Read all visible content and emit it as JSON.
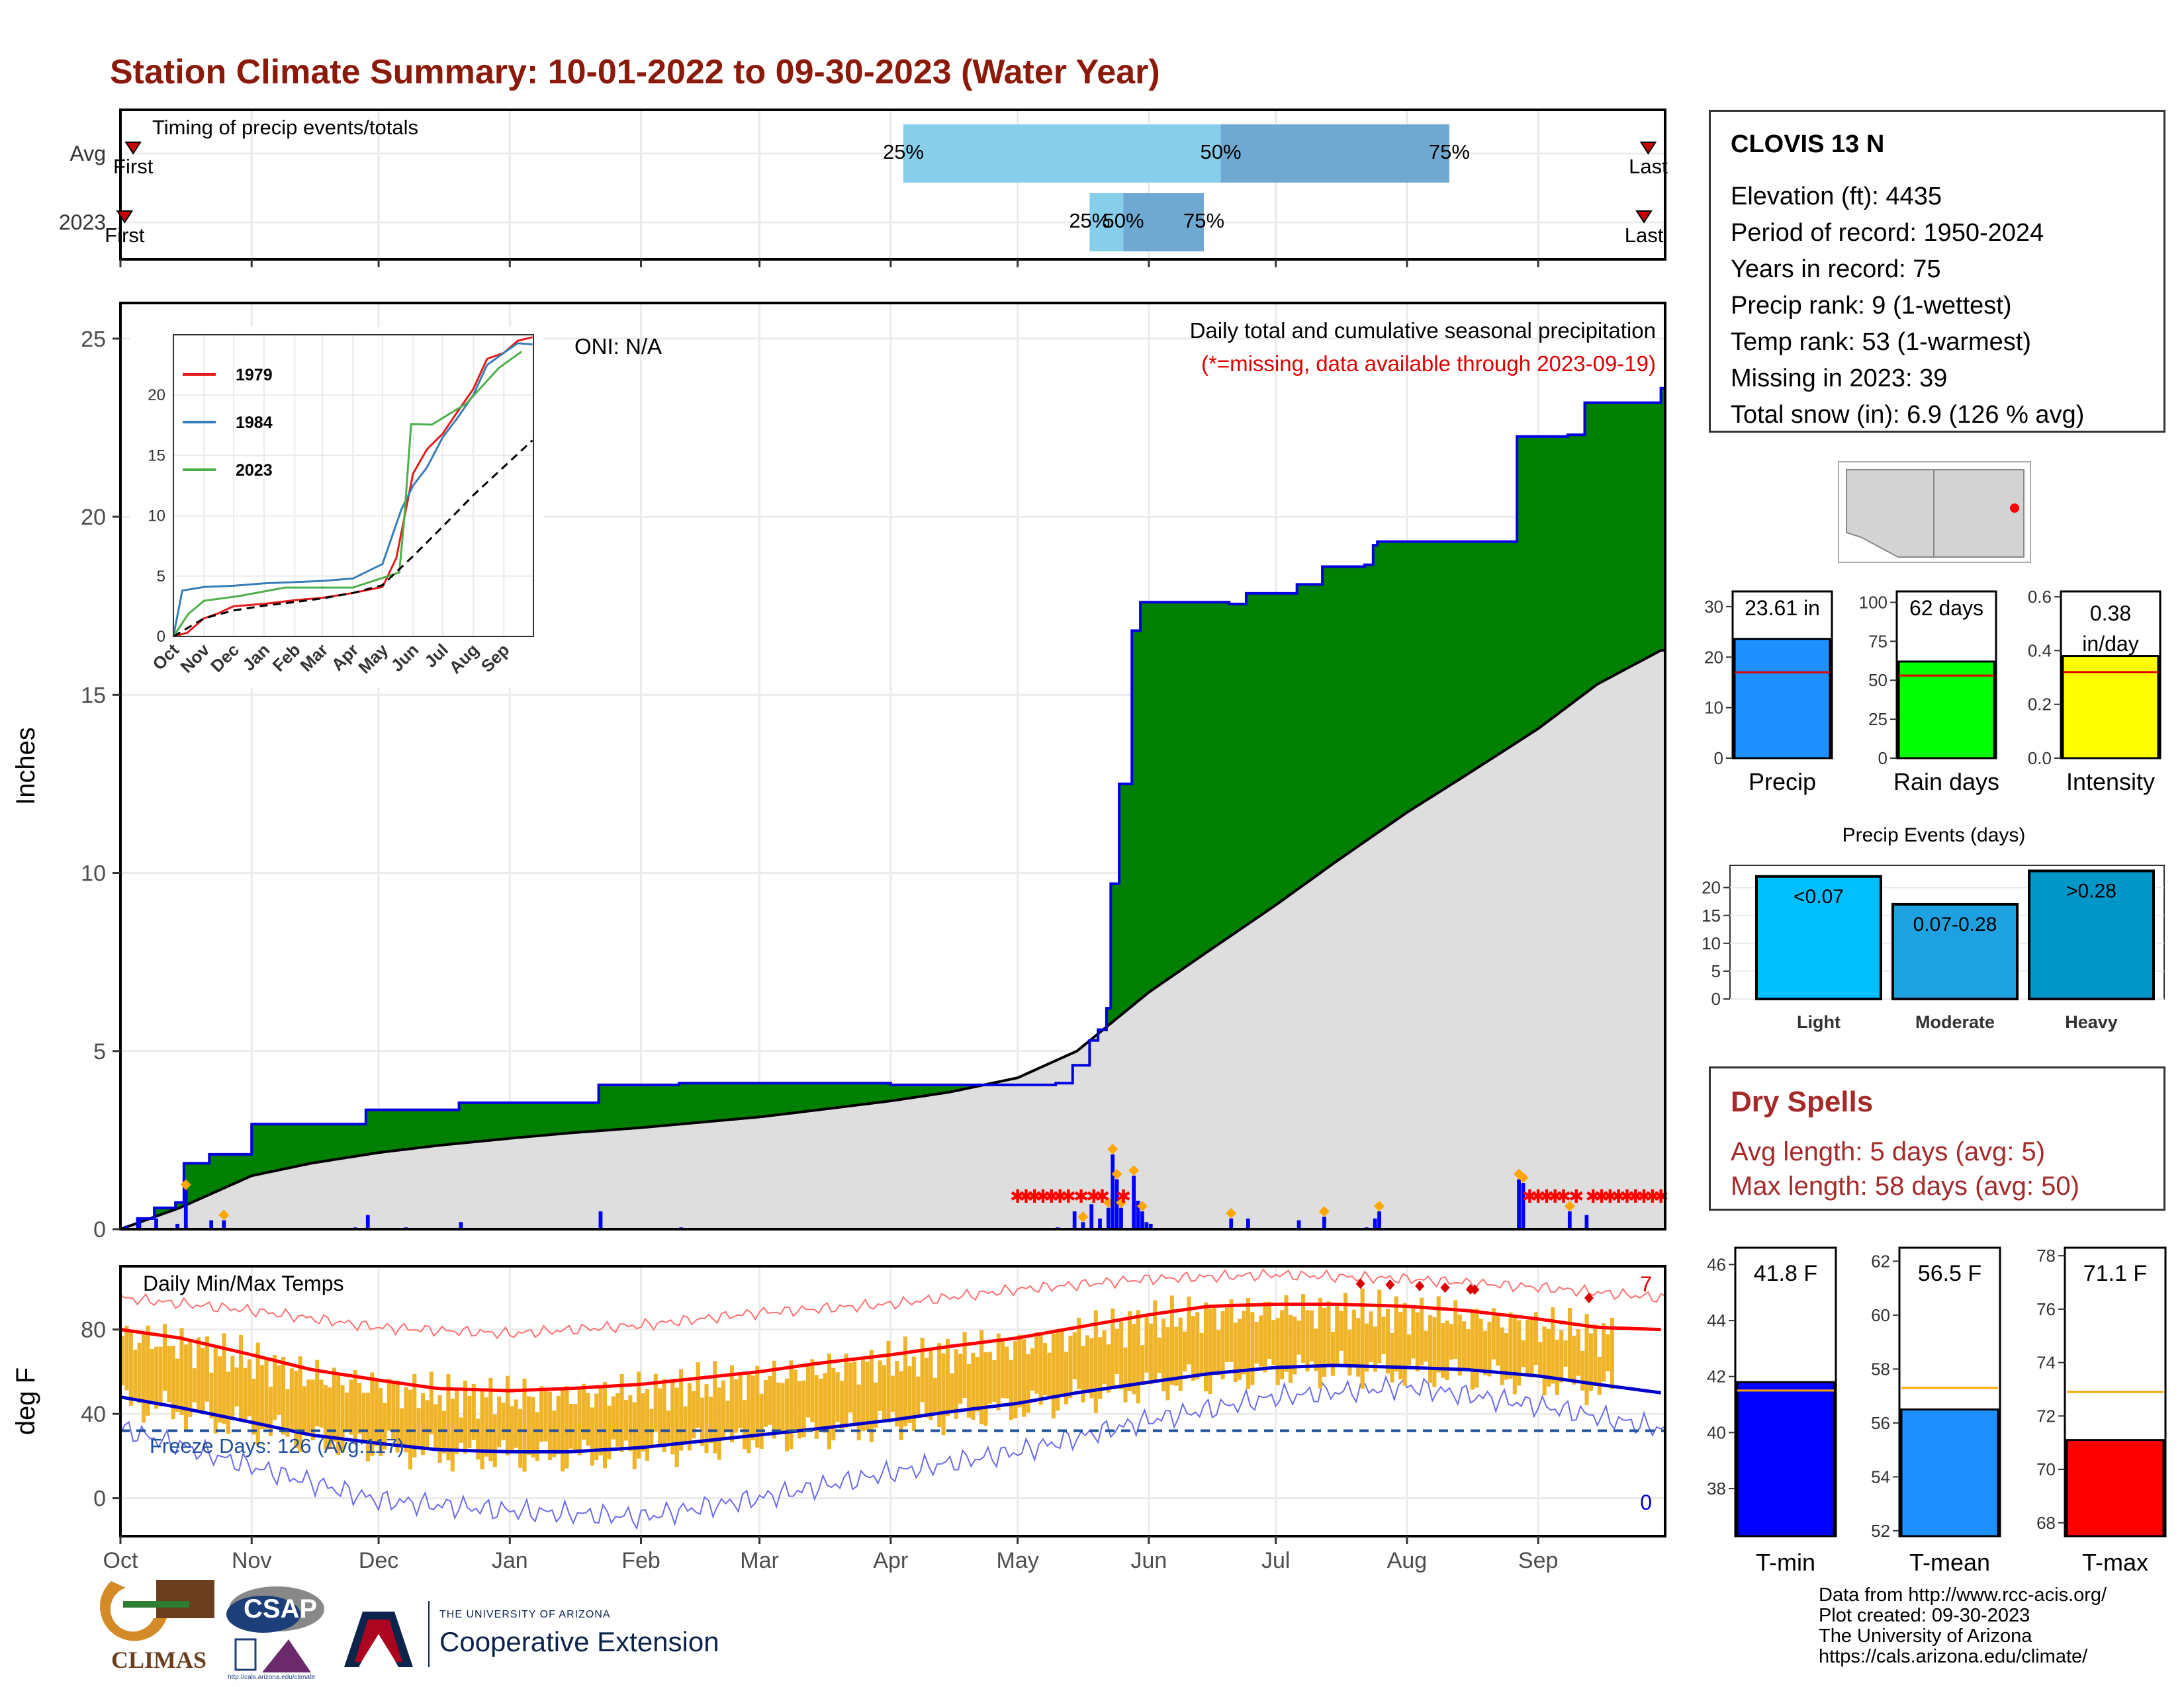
{
  "title": "Station Climate Summary: 10-01-2022 to 09-30-2023 (Water Year)",
  "timing": {
    "caption": "Timing of precip events/totals",
    "rows": [
      "Avg",
      "2023"
    ],
    "first_label": "First",
    "last_label": "Last",
    "pct_labels": [
      "25%",
      "50%",
      "75%"
    ],
    "avg": {
      "first": "2022-10-04",
      "p25": "2023-04-04",
      "p50": "2023-06-18",
      "p75": "2023-08-11",
      "last": "2023-09-27"
    },
    "y2023": {
      "first": "2022-10-02",
      "p25": "2023-05-18",
      "p50": "2023-05-26",
      "p75": "2023-06-14",
      "last": "2023-09-26"
    }
  },
  "main_chart": {
    "ylabel": "Inches",
    "ticks": [
      0,
      5,
      10,
      15,
      20,
      25
    ],
    "annotation_title": "Daily total and cumulative seasonal precipitation",
    "annotation_missing": "(*=missing, data available through 2023-09-19)",
    "oni": "ONI: N/A"
  },
  "temp_chart": {
    "ylabel": "deg F",
    "caption": "Daily Min/Max Temps",
    "ticks": [
      0,
      40,
      80
    ],
    "freeze_label": "Freeze Days: 126 (Avg:117)",
    "count_hot": "7",
    "count_cold": "0"
  },
  "months": [
    "Oct",
    "Nov",
    "Dec",
    "Jan",
    "Feb",
    "Mar",
    "Apr",
    "May",
    "Jun",
    "Jul",
    "Aug",
    "Sep"
  ],
  "station": {
    "name": "CLOVIS 13 N",
    "lines": [
      "Elevation (ft): 4435",
      "Period of record: 1950-2024",
      "Years in record: 75",
      "Precip rank: 9 (1-wettest)",
      "Temp rank: 53 (1-warmest)",
      "Missing in 2023: 39",
      "Total snow (in): 6.9 (126 % avg)"
    ]
  },
  "mini_bars": [
    {
      "label": "Precip",
      "value": 23.61,
      "avg": 17.0,
      "text": "23.61 in",
      "ticks": [
        "0",
        "10",
        "20",
        "30"
      ],
      "min": 0,
      "max": 33,
      "color": "#1e90ff"
    },
    {
      "label": "Rain days",
      "value": 62,
      "avg": 53,
      "text": "62 days",
      "ticks": [
        "0",
        "25",
        "50",
        "75",
        "100"
      ],
      "min": 0,
      "max": 107,
      "color": "#00ff00"
    },
    {
      "label": "Intensity",
      "value": 0.38,
      "avg": 0.32,
      "text": "0.38 in/day",
      "ticks": [
        "0.0",
        "0.2",
        "0.4",
        "0.6"
      ],
      "min": 0,
      "max": 0.62,
      "color": "#ffff00"
    }
  ],
  "precip_events": {
    "title": "Precip Events (days)",
    "ticks": [
      "0",
      "5",
      "10",
      "15",
      "20"
    ],
    "max": 24,
    "bars": [
      {
        "label": "Light",
        "value": 22,
        "text": "<0.07",
        "color": "#00bfff"
      },
      {
        "label": "Moderate",
        "value": 17,
        "text": "0.07-0.28",
        "color": "#1ea1e0"
      },
      {
        "label": "Heavy",
        "value": 23,
        "text": ">0.28",
        "color": "#0096c7"
      }
    ]
  },
  "dry_spells": {
    "title": "Dry Spells",
    "avg_length": "Avg length: 5 days (avg: 5)",
    "max_length": "Max length: 58 days (avg: 50)"
  },
  "temp_bars": [
    {
      "label": "T-min",
      "value": 41.8,
      "avg": 41.5,
      "text": "41.8 F",
      "ticks": [
        "38",
        "40",
        "42",
        "44",
        "46"
      ],
      "min": 36.3,
      "max": 46.6,
      "color": "#0000ff"
    },
    {
      "label": "T-mean",
      "value": 56.5,
      "avg": 57.3,
      "text": "56.5 F",
      "ticks": [
        "52",
        "54",
        "56",
        "58",
        "60",
        "62"
      ],
      "min": 51.8,
      "max": 62.5,
      "color": "#1e90ff"
    },
    {
      "label": "T-max",
      "value": 71.1,
      "avg": 72.9,
      "text": "71.1 F",
      "ticks": [
        "68",
        "70",
        "72",
        "74",
        "76",
        "78"
      ],
      "min": 67.5,
      "max": 78.3,
      "color": "#ff0000"
    }
  ],
  "credits": [
    "Data from http://www.rcc-acis.org/",
    "Plot created: 09-30-2023",
    "The University of Arizona",
    "https://cals.arizona.edu/climate/"
  ],
  "logos": {
    "climas": "CLIMAS",
    "csap": "CSAP",
    "csap_url": "http://cals.arizona.edu/climate",
    "ua_line1": "THE UNIVERSITY OF ARIZONA",
    "ua_line2": "Cooperative Extension"
  },
  "chart_data": [
    {
      "type": "area",
      "title": "Daily total and cumulative seasonal precipitation",
      "ylabel": "Inches",
      "ylim": [
        0,
        26
      ],
      "x_unit": "date",
      "series": [
        {
          "name": "",
          "kind": "cumulative_2023",
          "x": [
            "2022-10-01",
            "2022-10-05",
            "2022-10-09",
            "2022-10-14",
            "2022-10-16",
            "2022-10-22",
            "2022-11-01",
            "2022-11-25",
            "2022-11-28",
            "2022-12-07",
            "2022-12-20",
            "2023-01-22",
            "2023-02-10",
            "2023-04-01",
            "2023-05-10",
            "2023-05-14",
            "2023-05-18",
            "2023-05-20",
            "2023-05-22",
            "2023-05-23",
            "2023-05-25",
            "2023-05-28",
            "2023-05-30",
            "2023-06-20",
            "2023-06-24",
            "2023-07-06",
            "2023-07-12",
            "2023-07-22",
            "2023-07-24",
            "2023-07-25",
            "2023-08-26",
            "2023-08-27",
            "2023-09-08",
            "2023-09-12",
            "2023-09-30"
          ],
          "y": [
            0,
            0.3,
            0.6,
            0.75,
            1.85,
            2.1,
            2.95,
            2.95,
            3.35,
            3.35,
            3.55,
            4.05,
            4.1,
            4.05,
            4.1,
            4.6,
            5.3,
            5.6,
            6.2,
            9.7,
            12.5,
            16.8,
            17.6,
            17.55,
            17.85,
            18.1,
            18.6,
            18.65,
            19.2,
            19.3,
            19.3,
            22.25,
            22.3,
            23.2,
            23.61
          ]
        },
        {
          "name": "",
          "kind": "cumulative_average",
          "x": [
            "2022-10-01",
            "2022-10-15",
            "2022-11-01",
            "2022-11-15",
            "2022-12-01",
            "2022-12-15",
            "2023-01-01",
            "2023-01-15",
            "2023-02-01",
            "2023-02-15",
            "2023-03-01",
            "2023-03-15",
            "2023-04-01",
            "2023-04-15",
            "2023-05-01",
            "2023-05-15",
            "2023-06-01",
            "2023-06-15",
            "2023-07-01",
            "2023-07-15",
            "2023-08-01",
            "2023-08-15",
            "2023-09-01",
            "2023-09-15",
            "2023-09-30"
          ],
          "y": [
            0,
            0.6,
            1.5,
            1.85,
            2.15,
            2.35,
            2.55,
            2.7,
            2.85,
            3.0,
            3.15,
            3.35,
            3.6,
            3.85,
            4.25,
            5.0,
            6.65,
            7.8,
            9.1,
            10.3,
            11.7,
            12.75,
            14.05,
            15.3,
            16.25
          ]
        },
        {
          "name": "",
          "kind": "daily_precip",
          "x": [
            "2022-10-02",
            "2022-10-05",
            "2022-10-09",
            "2022-10-14",
            "2022-10-16",
            "2022-10-22",
            "2022-10-25",
            "2022-11-25",
            "2022-11-28",
            "2022-12-07",
            "2022-12-20",
            "2023-01-22",
            "2023-02-10",
            "2023-05-10",
            "2023-05-14",
            "2023-05-16",
            "2023-05-18",
            "2023-05-20",
            "2023-05-22",
            "2023-05-23",
            "2023-05-24",
            "2023-05-25",
            "2023-05-28",
            "2023-05-29",
            "2023-05-30",
            "2023-05-31",
            "2023-06-01",
            "2023-06-20",
            "2023-06-24",
            "2023-07-06",
            "2023-07-12",
            "2023-07-22",
            "2023-07-24",
            "2023-07-25",
            "2023-08-27",
            "2023-08-28",
            "2023-09-08",
            "2023-09-12"
          ],
          "y": [
            0.1,
            0.3,
            0.3,
            0.15,
            1.1,
            0.25,
            0.25,
            0.05,
            0.4,
            0.05,
            0.2,
            0.5,
            0.05,
            0.05,
            0.5,
            0.2,
            0.7,
            0.3,
            0.6,
            2.1,
            1.4,
            0.6,
            1.5,
            0.8,
            0.5,
            0.2,
            0.15,
            0.3,
            0.3,
            0.25,
            0.35,
            0.05,
            0.3,
            0.5,
            1.4,
            1.3,
            0.5,
            0.4
          ]
        },
        {
          "name": "",
          "kind": "missing_markers",
          "x": [
            "2023-05-01",
            "2023-05-03",
            "2023-05-05",
            "2023-05-07",
            "2023-05-09",
            "2023-05-11",
            "2023-05-13",
            "2023-05-16",
            "2023-05-19",
            "2023-05-21",
            "2023-05-26",
            "2023-08-30",
            "2023-09-01",
            "2023-09-03",
            "2023-09-05",
            "2023-09-07",
            "2023-09-10",
            "2023-09-14",
            "2023-09-16",
            "2023-09-18",
            "2023-09-20",
            "2023-09-22",
            "2023-09-24",
            "2023-09-26",
            "2023-09-28",
            "2023-09-30"
          ],
          "y": [
            1.0,
            1.0,
            1.0,
            1.0,
            1.0,
            1.0,
            1.0,
            1.0,
            1.0,
            1.0,
            1.0,
            1.0,
            1.0,
            1.0,
            1.0,
            1.0,
            1.0,
            1.0,
            1.0,
            1.0,
            1.0,
            1.0,
            1.0,
            1.0,
            1.0,
            1.0
          ]
        }
      ]
    },
    {
      "type": "line",
      "title": "",
      "inset": true,
      "ylim": [
        0,
        25
      ],
      "x_unit": "date",
      "series": [
        {
          "name": "1979",
          "color": "#e41a1c",
          "x": [
            "2022-10-01",
            "2022-10-15",
            "2022-11-01",
            "2022-11-15",
            "2022-12-01",
            "2023-01-01",
            "2023-02-01",
            "2023-03-01",
            "2023-04-01",
            "2023-05-01",
            "2023-05-15",
            "2023-06-01",
            "2023-06-15",
            "2023-07-01",
            "2023-07-15",
            "2023-08-01",
            "2023-08-15",
            "2023-09-01",
            "2023-09-15",
            "2023-09-30"
          ],
          "y": [
            0,
            0.3,
            1.5,
            1.9,
            2.5,
            2.7,
            3.0,
            3.2,
            3.6,
            4.1,
            6.5,
            13.5,
            15.5,
            16.8,
            18.5,
            20.5,
            23.0,
            23.5,
            24.5,
            24.8
          ]
        },
        {
          "name": "1984",
          "color": "#377eb8",
          "x": [
            "2022-10-01",
            "2022-10-10",
            "2022-11-01",
            "2022-12-01",
            "2023-01-01",
            "2023-02-01",
            "2023-03-01",
            "2023-04-01",
            "2023-05-01",
            "2023-05-20",
            "2023-06-01",
            "2023-06-15",
            "2023-07-01",
            "2023-07-15",
            "2023-08-01",
            "2023-08-15",
            "2023-09-01",
            "2023-09-15",
            "2023-09-30"
          ],
          "y": [
            0,
            3.8,
            4.1,
            4.2,
            4.4,
            4.5,
            4.6,
            4.8,
            6.0,
            10.5,
            12.5,
            14.0,
            16.5,
            18.0,
            20.0,
            22.5,
            23.5,
            24.3,
            24.2
          ]
        },
        {
          "name": "2023",
          "color": "#4daf4a",
          "x": [
            "2022-10-01",
            "2022-10-16",
            "2022-11-01",
            "2022-12-07",
            "2023-01-22",
            "2023-04-01",
            "2023-05-18",
            "2023-05-23",
            "2023-05-30",
            "2023-06-20",
            "2023-07-25",
            "2023-08-27",
            "2023-09-12",
            "2023-09-19"
          ],
          "y": [
            0,
            1.85,
            2.95,
            3.35,
            4.05,
            4.05,
            5.3,
            9.7,
            17.6,
            17.55,
            19.3,
            22.25,
            23.2,
            23.61
          ]
        },
        {
          "name": "",
          "color": "#000000",
          "style": "dashed",
          "x": [
            "2022-10-01",
            "2022-11-01",
            "2022-12-01",
            "2023-01-01",
            "2023-02-01",
            "2023-03-01",
            "2023-04-01",
            "2023-05-01",
            "2023-06-01",
            "2023-07-01",
            "2023-08-01",
            "2023-09-01",
            "2023-09-30"
          ],
          "y": [
            0,
            1.5,
            2.15,
            2.55,
            2.85,
            3.15,
            3.6,
            4.25,
            6.65,
            9.1,
            11.7,
            14.05,
            16.25
          ]
        }
      ]
    },
    {
      "type": "bar",
      "title": "Daily Min/Max Temps",
      "ylabel": "deg F",
      "ylim": [
        -18,
        110
      ],
      "x_unit": "date",
      "series": [
        {
          "name": "",
          "kind": "normal_max",
          "color": "#ff0000",
          "x": [
            "2022-10-01",
            "2022-10-15",
            "2022-11-01",
            "2022-11-15",
            "2022-12-01",
            "2022-12-15",
            "2023-01-01",
            "2023-01-15",
            "2023-02-01",
            "2023-02-15",
            "2023-03-01",
            "2023-03-15",
            "2023-04-01",
            "2023-04-15",
            "2023-05-01",
            "2023-05-15",
            "2023-06-01",
            "2023-06-15",
            "2023-07-01",
            "2023-07-15",
            "2023-08-01",
            "2023-08-15",
            "2023-09-01",
            "2023-09-15",
            "2023-09-30"
          ],
          "y": [
            80,
            76,
            68,
            61,
            56,
            52,
            51,
            52,
            54,
            57,
            60,
            64,
            68,
            72,
            76,
            81,
            87,
            91,
            92,
            92,
            91,
            89,
            85,
            81,
            80
          ]
        },
        {
          "name": "",
          "kind": "normal_min",
          "color": "#0000cc",
          "x": [
            "2022-10-01",
            "2022-10-15",
            "2022-11-01",
            "2022-11-15",
            "2022-12-01",
            "2022-12-15",
            "2023-01-01",
            "2023-01-15",
            "2023-02-01",
            "2023-02-15",
            "2023-03-01",
            "2023-03-15",
            "2023-04-01",
            "2023-04-15",
            "2023-05-01",
            "2023-05-15",
            "2023-06-01",
            "2023-06-15",
            "2023-07-01",
            "2023-07-15",
            "2023-08-01",
            "2023-08-15",
            "2023-09-01",
            "2023-09-15",
            "2023-09-30"
          ],
          "y": [
            48,
            43,
            36,
            30,
            26,
            23,
            22,
            22,
            24,
            27,
            30,
            33,
            37,
            41,
            45,
            50,
            55,
            59,
            62,
            63,
            62,
            61,
            58,
            54,
            50
          ]
        },
        {
          "name": "",
          "kind": "record_max",
          "color": "#ff6060",
          "x": [
            "2022-10-01",
            "2022-11-01",
            "2022-12-01",
            "2023-01-01",
            "2023-02-01",
            "2023-03-01",
            "2023-04-01",
            "2023-05-01",
            "2023-06-01",
            "2023-07-01",
            "2023-08-01",
            "2023-09-01",
            "2023-09-30"
          ],
          "y": [
            95,
            89,
            81,
            78,
            82,
            88,
            92,
            99,
            104,
            106,
            104,
            100,
            95
          ]
        },
        {
          "name": "",
          "kind": "record_min",
          "color": "#5555ee",
          "x": [
            "2022-10-01",
            "2022-11-01",
            "2022-12-01",
            "2023-01-01",
            "2023-02-01",
            "2023-03-01",
            "2023-04-01",
            "2023-05-01",
            "2023-06-01",
            "2023-07-01",
            "2023-08-01",
            "2023-09-01",
            "2023-09-30"
          ],
          "y": [
            33,
            15,
            -1,
            -6,
            -9,
            0,
            12,
            22,
            37,
            48,
            53,
            44,
            33
          ]
        },
        {
          "name": "",
          "kind": "freeze_line",
          "color": "#1f4e9e",
          "x": [
            "2022-10-01",
            "2023-09-30"
          ],
          "y": [
            32,
            32
          ]
        }
      ]
    }
  ]
}
